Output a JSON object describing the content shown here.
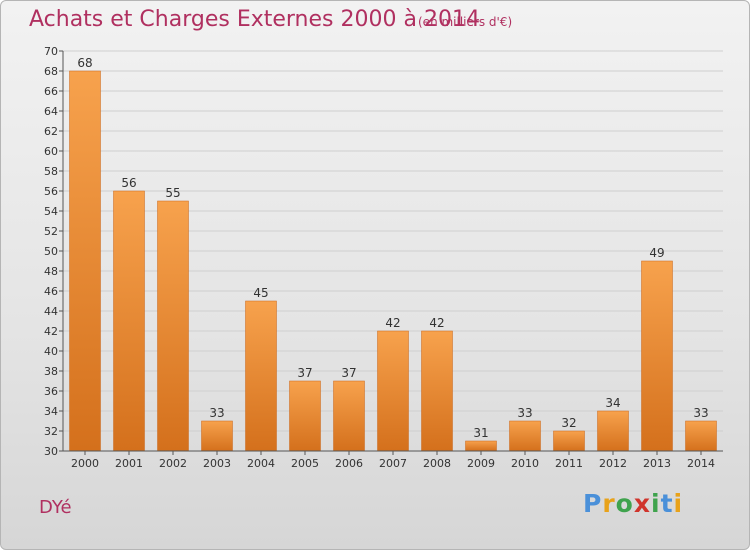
{
  "chart_data": {
    "type": "bar",
    "title": "Achats et Charges Externes 2000 à 2014",
    "subtitle": "(en milliers d'€)",
    "categories": [
      "2000",
      "2001",
      "2002",
      "2003",
      "2004",
      "2005",
      "2006",
      "2007",
      "2008",
      "2009",
      "2010",
      "2011",
      "2012",
      "2013",
      "2014"
    ],
    "values": [
      68,
      56,
      55,
      33,
      45,
      37,
      37,
      42,
      42,
      31,
      33,
      32,
      34,
      49,
      33
    ],
    "ylim": [
      30,
      70
    ],
    "yticks": [
      30,
      32,
      34,
      36,
      38,
      40,
      42,
      44,
      46,
      48,
      50,
      52,
      54,
      56,
      58,
      60,
      62,
      64,
      66,
      68,
      70
    ],
    "grid": true,
    "bar_color": "#f0913a"
  },
  "footer": {
    "commune": "DYé",
    "logo": [
      "P",
      "r",
      "o",
      "x",
      "i",
      "t",
      "i"
    ]
  }
}
